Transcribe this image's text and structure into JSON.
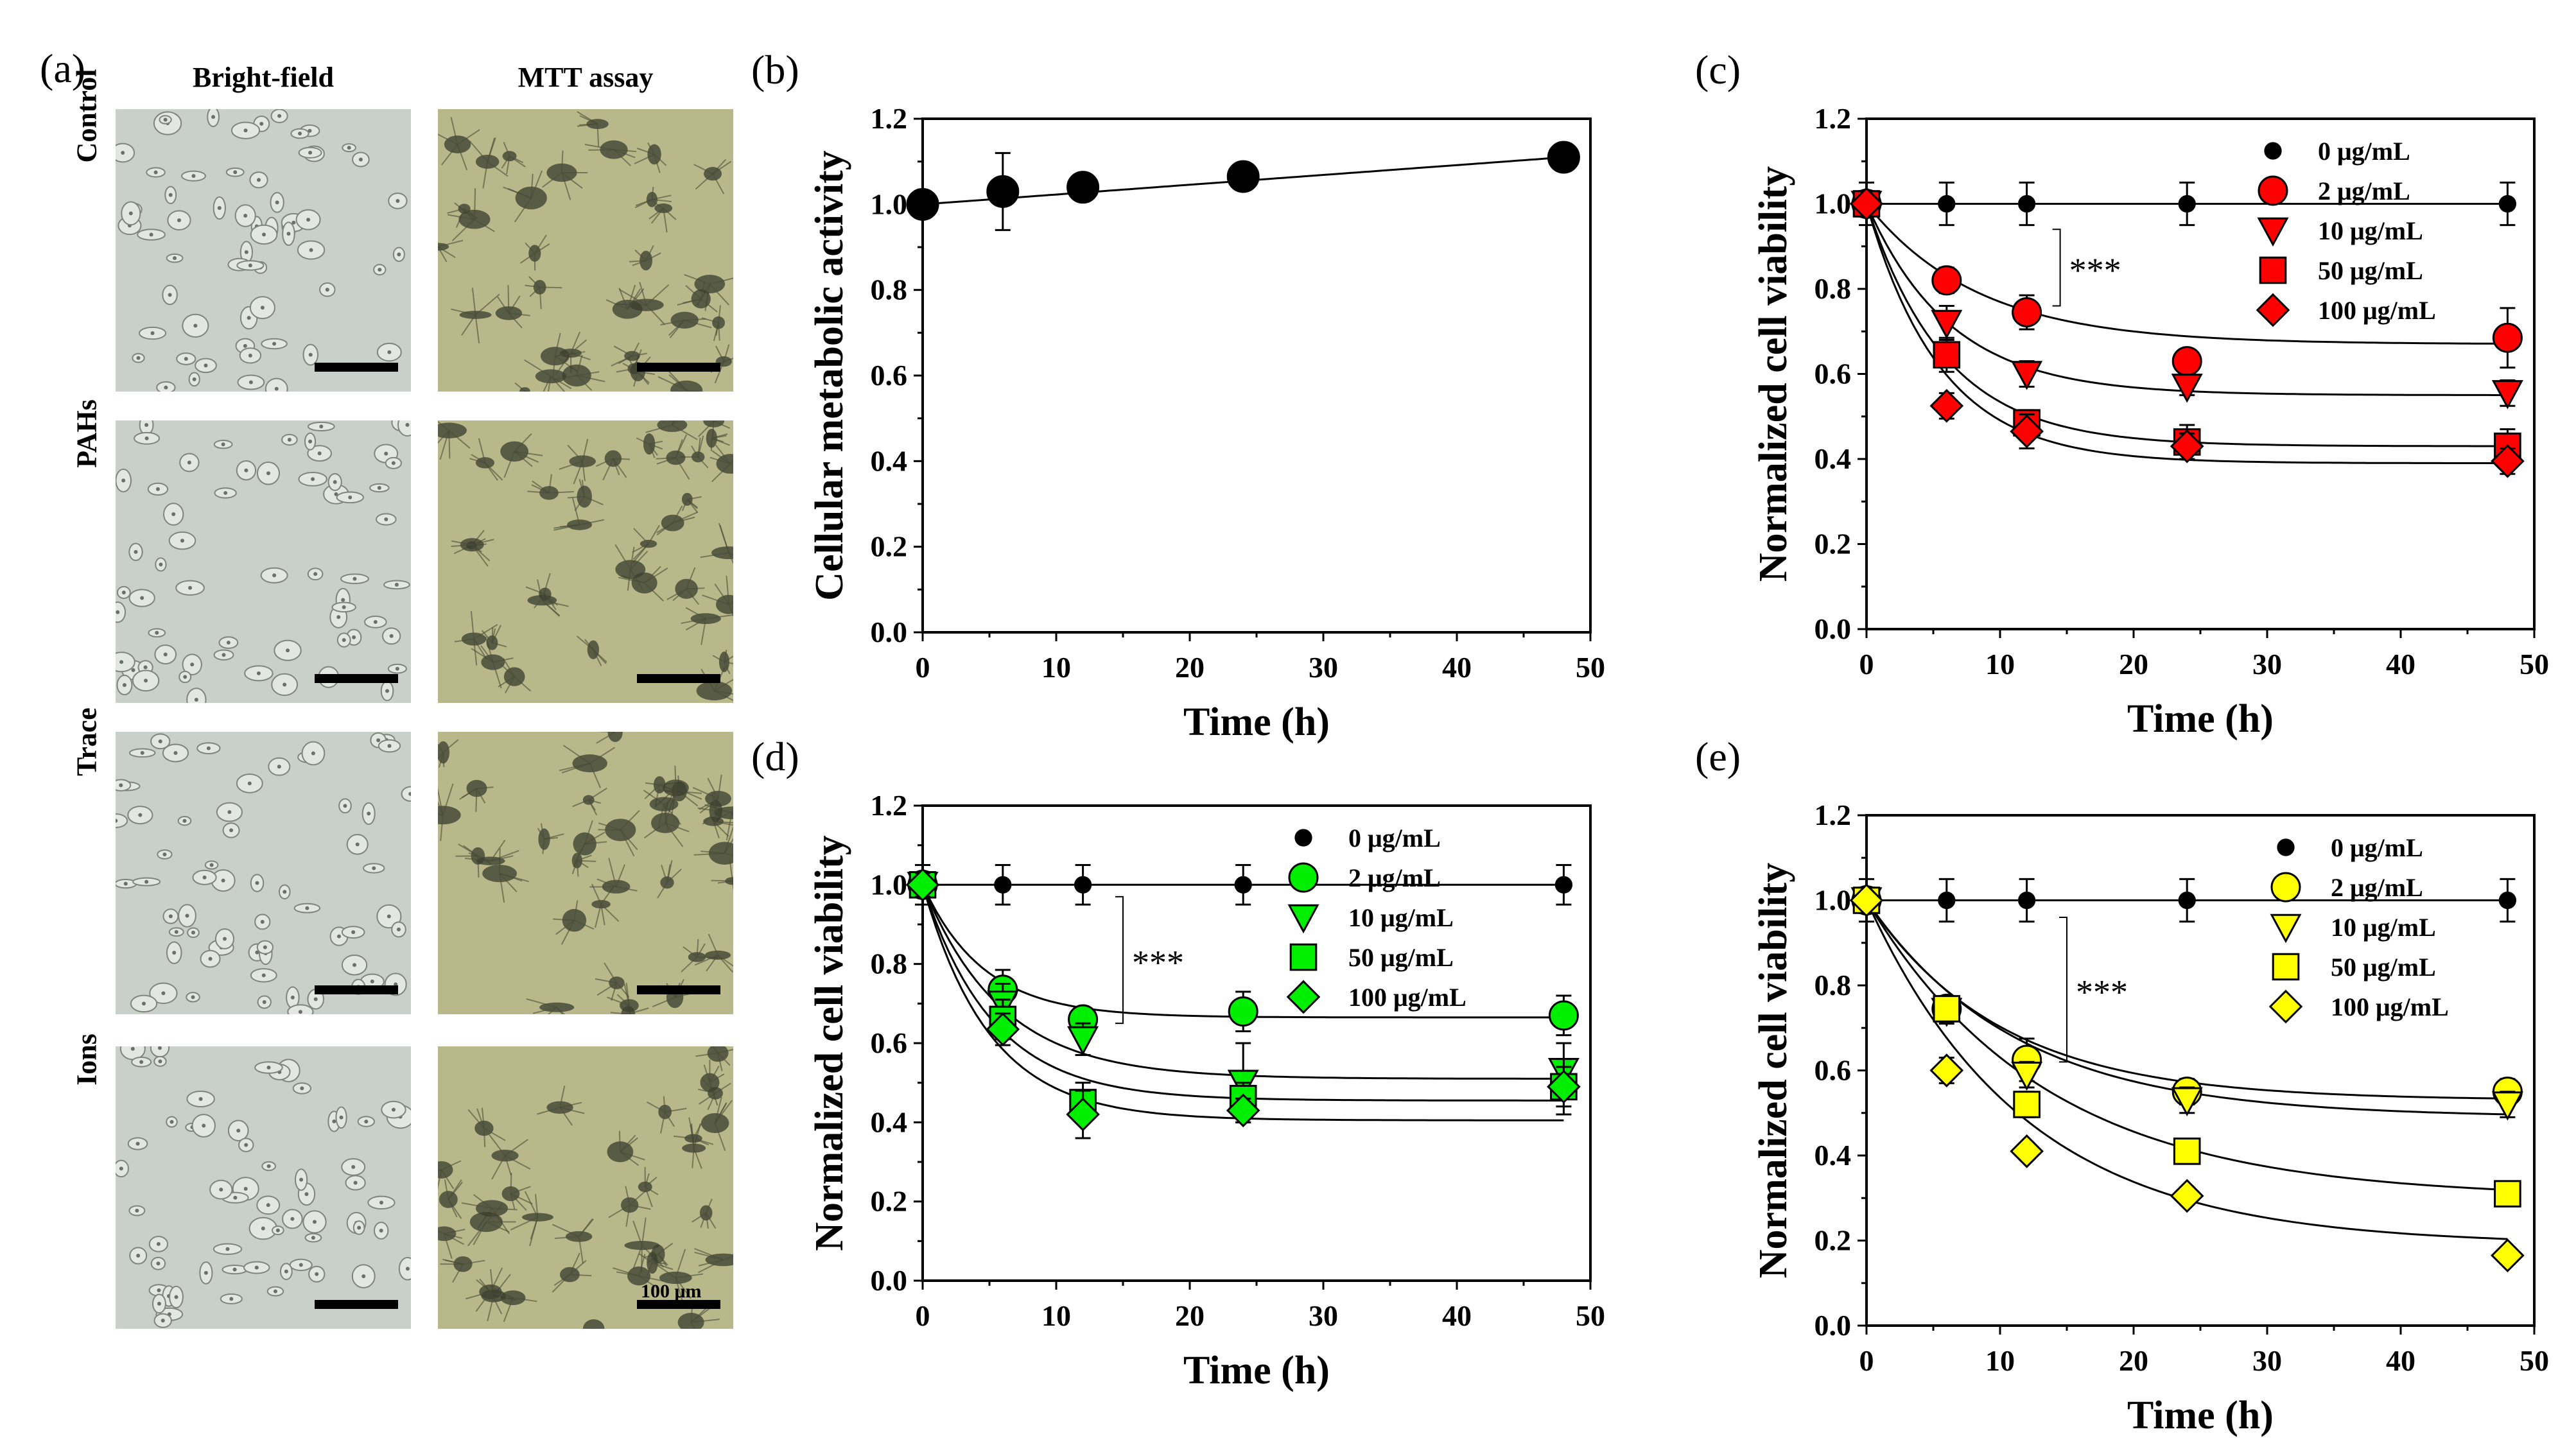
{
  "panel_a": {
    "letter": "(a)",
    "columns": [
      "Bright-field",
      "MTT assay"
    ],
    "rows": [
      "Control",
      "PAHs",
      "Trace",
      "Ions"
    ],
    "scale_label": "100 μm",
    "colors": {
      "bright_field_bg": "#c9cfc9",
      "mtt_bg": "#b9b88a",
      "cell_dark": "#3a3d2e"
    }
  },
  "chart_data": [
    {
      "id": "b",
      "letter": "(b)",
      "type": "scatter",
      "xlabel": "Time (h)",
      "ylabel": "Cellular metabolic activity",
      "xlim": [
        0,
        50
      ],
      "ylim": [
        0,
        1.2
      ],
      "xticks": [
        "0",
        "10",
        "20",
        "30",
        "40",
        "50"
      ],
      "yticks": [
        "0.0",
        "0.2",
        "0.4",
        "0.6",
        "0.8",
        "1.0",
        "1.2"
      ],
      "series": [
        {
          "marker": "circle",
          "color": "#000000",
          "x": [
            0,
            6,
            12,
            24,
            48
          ],
          "y": [
            1.0,
            1.03,
            1.04,
            1.065,
            1.11
          ],
          "err": [
            0.02,
            0.09,
            0.03,
            0.02,
            0.02
          ],
          "fit": {
            "type": "linear"
          }
        }
      ],
      "legend": [],
      "annotation": ""
    },
    {
      "id": "c",
      "letter": "(c)",
      "type": "scatter",
      "xlabel": "Time (h)",
      "ylabel": "Normalized cell viability",
      "xlim": [
        0,
        50
      ],
      "ylim": [
        0,
        1.2
      ],
      "xticks": [
        "0",
        "10",
        "20",
        "30",
        "40",
        "50"
      ],
      "yticks": [
        "0.0",
        "0.2",
        "0.4",
        "0.6",
        "0.8",
        "1.0",
        "1.2"
      ],
      "annotation": "***",
      "series": [
        {
          "name": "0 μg/mL",
          "marker": "circle-small",
          "color": "#000000",
          "x": [
            0,
            6,
            12,
            24,
            48
          ],
          "y": [
            1.0,
            1.0,
            1.0,
            1.0,
            1.0
          ],
          "err": [
            0.05,
            0.05,
            0.05,
            0.05,
            0.05
          ],
          "fit": {
            "type": "flat",
            "plateau": 1.0
          }
        },
        {
          "name": "2 μg/mL",
          "marker": "circle",
          "color": "#ff0000",
          "x": [
            0,
            6,
            12,
            24,
            48
          ],
          "y": [
            1.0,
            0.82,
            0.745,
            0.63,
            0.685
          ],
          "err": [
            0.03,
            0.03,
            0.04,
            0.02,
            0.07
          ],
          "fit": {
            "type": "exp",
            "plateau": 0.67,
            "k": 0.12
          }
        },
        {
          "name": "10 μg/mL",
          "marker": "triangle-down",
          "color": "#ff0000",
          "x": [
            0,
            6,
            12,
            24,
            48
          ],
          "y": [
            1.0,
            0.72,
            0.6,
            0.57,
            0.555
          ],
          "err": [
            0.03,
            0.04,
            0.03,
            0.02,
            0.03
          ],
          "fit": {
            "type": "exp",
            "plateau": 0.55,
            "k": 0.16
          }
        },
        {
          "name": "50 μg/mL",
          "marker": "square",
          "color": "#ff0000",
          "x": [
            0,
            6,
            12,
            24,
            48
          ],
          "y": [
            1.0,
            0.645,
            0.485,
            0.44,
            0.43
          ],
          "err": [
            0.03,
            0.04,
            0.03,
            0.04,
            0.04
          ],
          "fit": {
            "type": "exp",
            "plateau": 0.43,
            "k": 0.17
          }
        },
        {
          "name": "100 μg/mL",
          "marker": "diamond",
          "color": "#ff0000",
          "x": [
            0,
            6,
            12,
            24,
            48
          ],
          "y": [
            1.0,
            0.525,
            0.465,
            0.43,
            0.395
          ],
          "err": [
            0.03,
            0.03,
            0.04,
            0.03,
            0.03
          ],
          "fit": {
            "type": "exp",
            "plateau": 0.39,
            "k": 0.18
          }
        }
      ]
    },
    {
      "id": "d",
      "letter": "(d)",
      "type": "scatter",
      "xlabel": "Time (h)",
      "ylabel": "Normalized cell viability",
      "xlim": [
        0,
        50
      ],
      "ylim": [
        0,
        1.2
      ],
      "xticks": [
        "0",
        "10",
        "20",
        "30",
        "40",
        "50"
      ],
      "yticks": [
        "0.0",
        "0.2",
        "0.4",
        "0.6",
        "0.8",
        "1.0",
        "1.2"
      ],
      "annotation": "***",
      "series": [
        {
          "name": "0 μg/mL",
          "marker": "circle-small",
          "color": "#000000",
          "x": [
            0,
            6,
            12,
            24,
            48
          ],
          "y": [
            1.0,
            1.0,
            1.0,
            1.0,
            1.0
          ],
          "err": [
            0.05,
            0.05,
            0.05,
            0.05,
            0.05
          ],
          "fit": {
            "type": "flat",
            "plateau": 1.0
          }
        },
        {
          "name": "2 μg/mL",
          "marker": "circle",
          "color": "#00ee00",
          "x": [
            0,
            6,
            12,
            24,
            48
          ],
          "y": [
            1.0,
            0.735,
            0.66,
            0.68,
            0.67
          ],
          "err": [
            0.03,
            0.05,
            0.03,
            0.05,
            0.05
          ],
          "fit": {
            "type": "exp",
            "plateau": 0.665,
            "k": 0.22
          }
        },
        {
          "name": "10 μg/mL",
          "marker": "triangle-down",
          "color": "#00ee00",
          "x": [
            0,
            6,
            12,
            24,
            48
          ],
          "y": [
            1.0,
            0.7,
            0.61,
            0.5,
            0.53
          ],
          "err": [
            0.03,
            0.05,
            0.04,
            0.1,
            0.07
          ],
          "fit": {
            "type": "exp",
            "plateau": 0.51,
            "k": 0.17
          }
        },
        {
          "name": "50 μg/mL",
          "marker": "square",
          "color": "#00ee00",
          "x": [
            0,
            6,
            12,
            24,
            48
          ],
          "y": [
            1.0,
            0.66,
            0.45,
            0.46,
            0.49
          ],
          "err": [
            0.03,
            0.05,
            0.05,
            0.04,
            0.05
          ],
          "fit": {
            "type": "exp",
            "plateau": 0.455,
            "k": 0.19
          }
        },
        {
          "name": "100 μg/mL",
          "marker": "diamond",
          "color": "#00ee00",
          "x": [
            0,
            6,
            12,
            24,
            48
          ],
          "y": [
            1.0,
            0.635,
            0.42,
            0.43,
            0.49
          ],
          "err": [
            0.03,
            0.04,
            0.06,
            0.03,
            0.07
          ],
          "fit": {
            "type": "exp",
            "plateau": 0.405,
            "k": 0.2
          }
        }
      ]
    },
    {
      "id": "e",
      "letter": "(e)",
      "type": "scatter",
      "xlabel": "Time (h)",
      "ylabel": "Normalized cell viability",
      "xlim": [
        0,
        50
      ],
      "ylim": [
        0,
        1.2
      ],
      "xticks": [
        "0",
        "10",
        "20",
        "30",
        "40",
        "50"
      ],
      "yticks": [
        "0.0",
        "0.2",
        "0.4",
        "0.6",
        "0.8",
        "1.0",
        "1.2"
      ],
      "annotation": "***",
      "series": [
        {
          "name": "0 μg/mL",
          "marker": "circle-small",
          "color": "#000000",
          "x": [
            0,
            6,
            12,
            24,
            48
          ],
          "y": [
            1.0,
            1.0,
            1.0,
            1.0,
            1.0
          ],
          "err": [
            0.05,
            0.05,
            0.05,
            0.05,
            0.05
          ],
          "fit": {
            "type": "flat",
            "plateau": 1.0
          }
        },
        {
          "name": "2 μg/mL",
          "marker": "circle",
          "color": "#ffff00",
          "x": [
            0,
            6,
            12,
            24,
            48
          ],
          "y": [
            1.0,
            0.745,
            0.625,
            0.55,
            0.55
          ],
          "err": [
            0.03,
            0.03,
            0.05,
            0.03,
            0.03
          ],
          "fit": {
            "type": "exp",
            "plateau": 0.53,
            "k": 0.1
          }
        },
        {
          "name": "10 μg/mL",
          "marker": "triangle-down",
          "color": "#ffff00",
          "x": [
            0,
            6,
            12,
            24,
            48
          ],
          "y": [
            1.0,
            0.74,
            0.59,
            0.53,
            0.52
          ],
          "err": [
            0.03,
            0.03,
            0.03,
            0.03,
            0.03
          ],
          "fit": {
            "type": "exp",
            "plateau": 0.49,
            "k": 0.09
          }
        },
        {
          "name": "50 μg/mL",
          "marker": "square",
          "color": "#ffff00",
          "x": [
            0,
            6,
            12,
            24,
            48
          ],
          "y": [
            1.0,
            0.745,
            0.52,
            0.41,
            0.31
          ],
          "err": [
            0.03,
            0.03,
            0.03,
            0.02,
            0.02
          ],
          "fit": {
            "type": "exp",
            "plateau": 0.3,
            "k": 0.075
          }
        },
        {
          "name": "100 μg/mL",
          "marker": "diamond",
          "color": "#ffff00",
          "x": [
            0,
            6,
            12,
            24,
            48
          ],
          "y": [
            1.0,
            0.6,
            0.41,
            0.305,
            0.165
          ],
          "err": [
            0.03,
            0.03,
            0.02,
            0.02,
            0.02
          ],
          "fit": {
            "type": "exp",
            "plateau": 0.19,
            "k": 0.085
          }
        }
      ]
    }
  ]
}
